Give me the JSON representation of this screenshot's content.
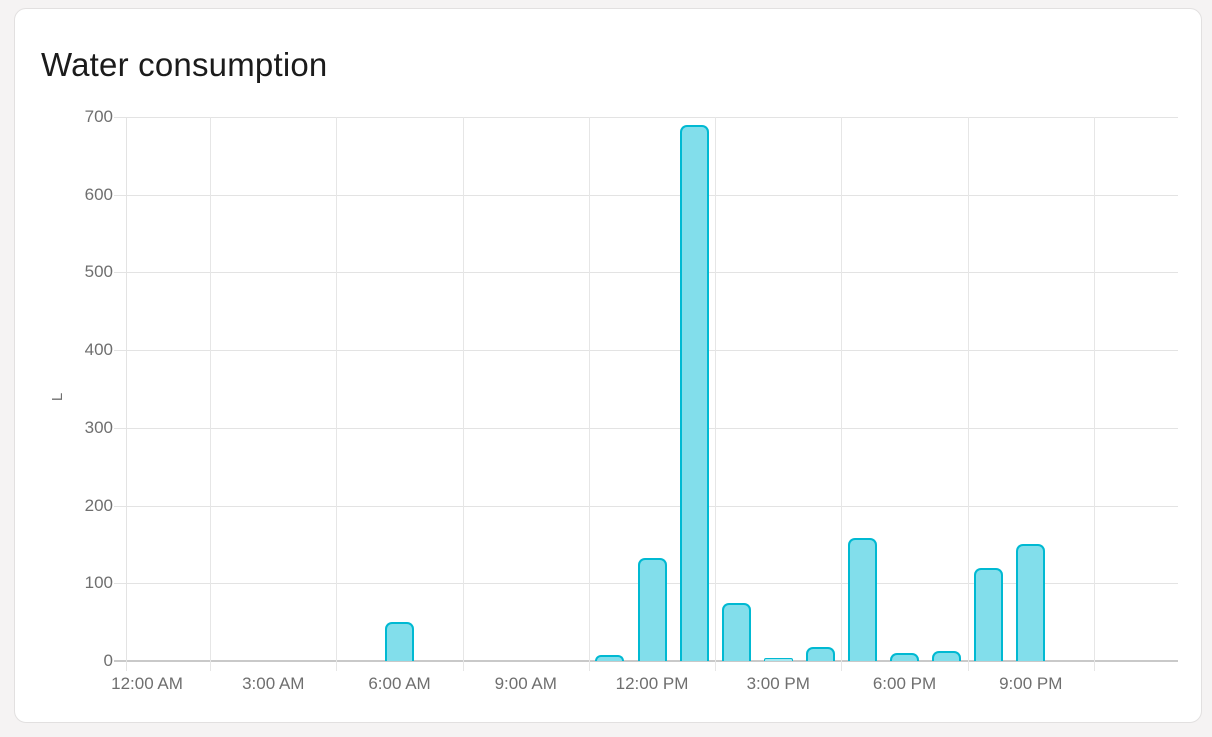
{
  "page": {
    "background_color": "#f5f3f3",
    "card_background_color": "#ffffff",
    "card_border_color": "#e2e0e0"
  },
  "card": {
    "title": "Water consumption"
  },
  "chart_data": {
    "type": "bar",
    "title": "Water consumption",
    "xlabel": "",
    "ylabel": "L",
    "unit": "L",
    "ylim": [
      0,
      700
    ],
    "ytick_interval": 100,
    "yticks": [
      0,
      100,
      200,
      300,
      400,
      500,
      600,
      700
    ],
    "grid": true,
    "grid_color": "#e3e3e3",
    "zero_line_color": "#c9c9c9",
    "axis_label_color": "#6f6f6f",
    "legend": "none",
    "x_mode": "hours-of-day",
    "hours_span": 25,
    "xticks": [
      {
        "hour": 0,
        "label": "12:00 AM"
      },
      {
        "hour": 3,
        "label": "3:00 AM"
      },
      {
        "hour": 6,
        "label": "6:00 AM"
      },
      {
        "hour": 9,
        "label": "9:00 AM"
      },
      {
        "hour": 12,
        "label": "12:00 PM"
      },
      {
        "hour": 15,
        "label": "3:00 PM"
      },
      {
        "hour": 18,
        "label": "6:00 PM"
      },
      {
        "hour": 21,
        "label": "9:00 PM"
      }
    ],
    "gridline_hours": [
      2,
      5,
      8,
      11,
      14,
      17,
      20,
      23
    ],
    "series": [
      {
        "name": "Water consumption",
        "color_fill": "#82DEEB",
        "color_fill_tiny": "#a5e7f0",
        "color_border": "#00B9D2",
        "values_by_hour": [
          0,
          0,
          0,
          0,
          0,
          0,
          50,
          0,
          0,
          0,
          0,
          8,
          133,
          690,
          74,
          3,
          18,
          158,
          10,
          13,
          120,
          150,
          0,
          0
        ]
      }
    ]
  }
}
